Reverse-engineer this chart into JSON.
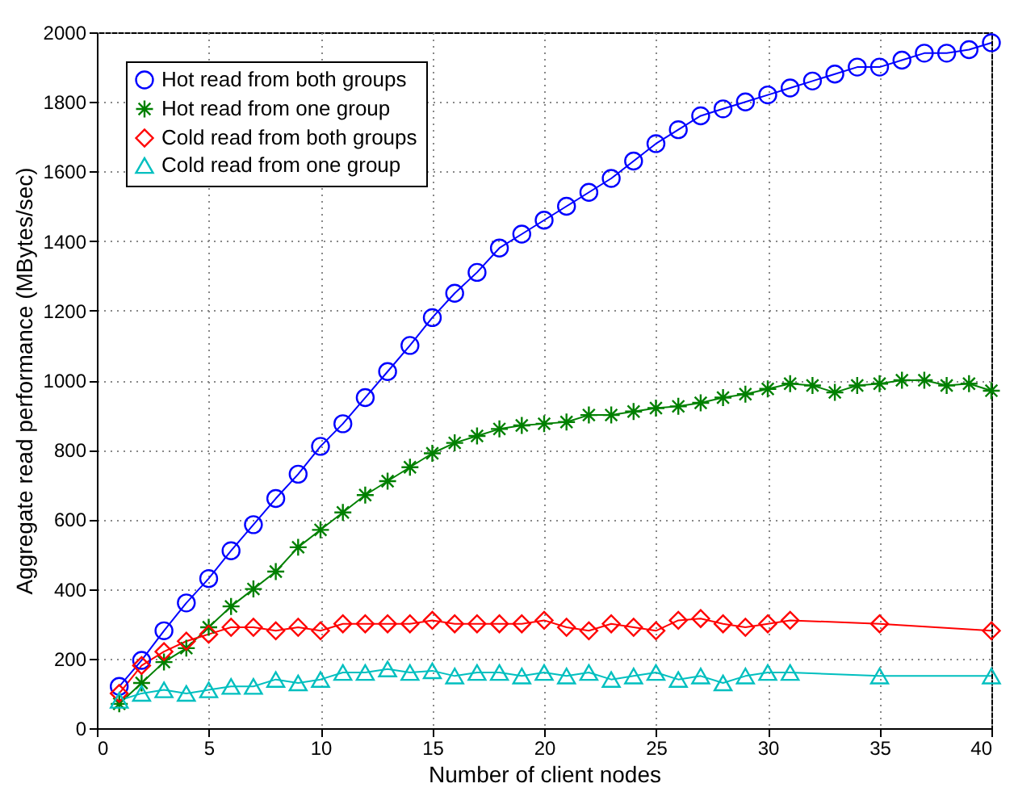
{
  "chart_data": {
    "type": "line",
    "xlabel": "Number of client nodes",
    "ylabel": "Aggregate read performance (MBytes/sec)",
    "xlim": [
      0,
      40
    ],
    "xticks": [
      0,
      5,
      10,
      15,
      20,
      25,
      30,
      35,
      40
    ],
    "ylim": [
      0,
      2000
    ],
    "yticks": [
      0,
      200,
      400,
      600,
      800,
      1000,
      1200,
      1400,
      1600,
      1800,
      2000
    ],
    "grid": true,
    "legend": "top left",
    "line_style": "solid",
    "series": [
      {
        "name": "Hot read from both groups",
        "color": "#0000ff",
        "marker": "circle",
        "x": [
          1,
          2,
          3,
          4,
          5,
          6,
          7,
          8,
          9,
          10,
          11,
          12,
          13,
          14,
          15,
          16,
          17,
          18,
          19,
          20,
          21,
          22,
          23,
          24,
          25,
          26,
          27,
          28,
          29,
          30,
          31,
          32,
          33,
          34,
          35,
          36,
          37,
          38,
          39,
          40
        ],
        "values": [
          120,
          195,
          280,
          360,
          430,
          510,
          585,
          660,
          730,
          810,
          875,
          950,
          1025,
          1100,
          1180,
          1250,
          1310,
          1380,
          1420,
          1460,
          1500,
          1540,
          1580,
          1630,
          1680,
          1720,
          1760,
          1780,
          1800,
          1820,
          1840,
          1860,
          1880,
          1900,
          1900,
          1920,
          1940,
          1940,
          1950,
          1970
        ]
      },
      {
        "name": "Hot read from one group",
        "color": "#008000",
        "marker": "cross",
        "x": [
          1,
          2,
          3,
          4,
          5,
          6,
          7,
          8,
          9,
          10,
          11,
          12,
          13,
          14,
          15,
          16,
          17,
          18,
          19,
          20,
          21,
          22,
          23,
          24,
          25,
          26,
          27,
          28,
          29,
          30,
          31,
          32,
          33,
          34,
          35,
          36,
          37,
          38,
          39,
          40
        ],
        "values": [
          70,
          130,
          190,
          230,
          290,
          350,
          400,
          450,
          520,
          570,
          620,
          670,
          710,
          750,
          790,
          820,
          840,
          860,
          870,
          875,
          880,
          900,
          900,
          910,
          920,
          925,
          935,
          950,
          960,
          975,
          990,
          985,
          965,
          985,
          990,
          1000,
          1000,
          985,
          990,
          970
        ]
      },
      {
        "name": "Cold read from both groups",
        "color": "#ff0000",
        "marker": "diamond",
        "x": [
          1,
          2,
          3,
          4,
          5,
          6,
          7,
          8,
          9,
          10,
          11,
          12,
          13,
          14,
          15,
          16,
          17,
          18,
          19,
          20,
          21,
          22,
          23,
          24,
          25,
          26,
          27,
          28,
          29,
          30,
          31,
          35,
          40
        ],
        "values": [
          100,
          180,
          220,
          250,
          270,
          290,
          290,
          280,
          290,
          280,
          300,
          300,
          300,
          300,
          310,
          300,
          300,
          300,
          300,
          310,
          290,
          280,
          300,
          290,
          280,
          310,
          315,
          300,
          290,
          300,
          310,
          300,
          280
        ]
      },
      {
        "name": "Cold read from one group",
        "color": "#00bfbf",
        "marker": "triangle",
        "x": [
          1,
          2,
          3,
          4,
          5,
          6,
          7,
          8,
          9,
          10,
          11,
          12,
          13,
          14,
          15,
          16,
          17,
          18,
          19,
          20,
          21,
          22,
          23,
          24,
          25,
          26,
          27,
          28,
          29,
          30,
          31,
          35,
          40
        ],
        "values": [
          80,
          100,
          110,
          100,
          110,
          120,
          120,
          140,
          130,
          140,
          160,
          160,
          170,
          160,
          165,
          150,
          160,
          160,
          150,
          160,
          150,
          160,
          140,
          150,
          160,
          140,
          150,
          130,
          150,
          160,
          160,
          150,
          150
        ]
      }
    ]
  }
}
